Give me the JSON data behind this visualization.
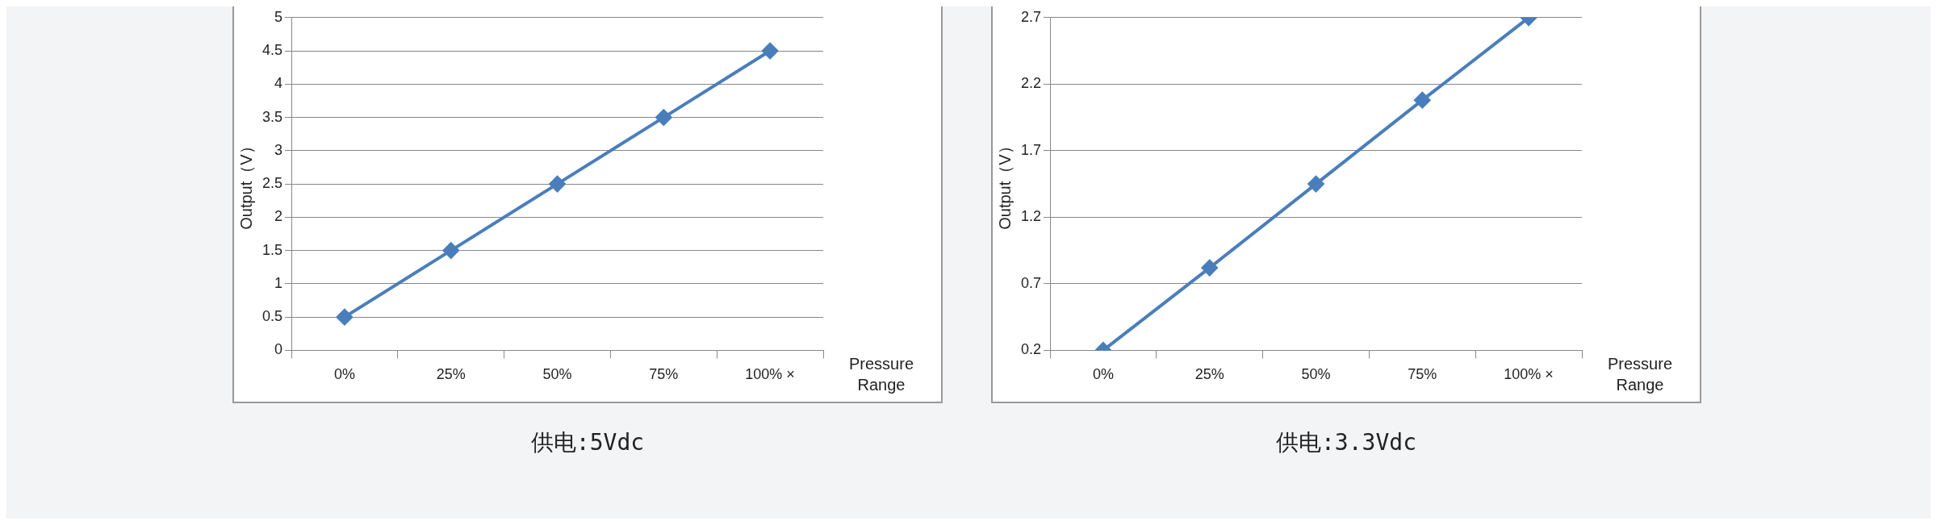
{
  "chart_data": [
    {
      "type": "line",
      "categories": [
        "0%",
        "25%",
        "50%",
        "75%",
        "100% ×"
      ],
      "values": [
        0.5,
        1.5,
        2.5,
        3.5,
        4.5
      ],
      "color": "#4a7ebb",
      "ylabel": "Output（V）",
      "xlabel": "Pressure Range",
      "ylim": [
        0,
        5
      ],
      "yticks": [
        0,
        0.5,
        1,
        1.5,
        2,
        2.5,
        3,
        3.5,
        4,
        4.5,
        5
      ],
      "grid": "y",
      "marker": "diamond",
      "line_style": "solid",
      "annotations": [
        "供电:5Vdc"
      ]
    },
    {
      "type": "line",
      "categories": [
        "0%",
        "25%",
        "50%",
        "75%",
        "100% ×"
      ],
      "values": [
        0.2,
        0.82,
        1.45,
        2.08,
        2.7
      ],
      "color": "#4a7ebb",
      "ylabel": "Output（V）",
      "xlabel": "Pressure Range",
      "ylim": [
        0.2,
        2.7
      ],
      "yticks": [
        0.2,
        0.7,
        1.2,
        1.7,
        2.2,
        2.7
      ],
      "grid": "y",
      "marker": "diamond",
      "line_style": "solid",
      "annotations": [
        "供电:3.3Vdc"
      ]
    }
  ]
}
